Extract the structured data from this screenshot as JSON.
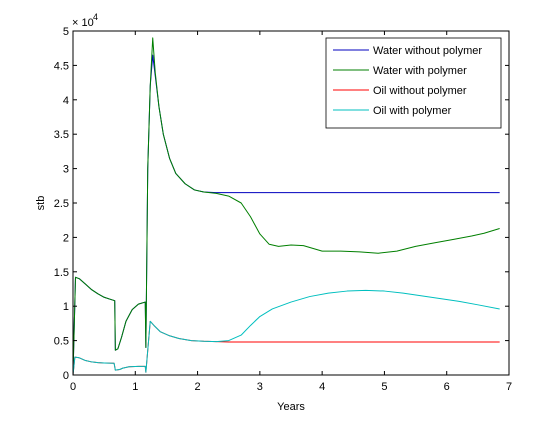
{
  "chart_data": {
    "type": "line",
    "title": "",
    "xlabel": "Years",
    "ylabel": "stb",
    "xlim": [
      0,
      7
    ],
    "ylim": [
      0,
      50000
    ],
    "x_ticks": [
      0,
      1,
      2,
      3,
      4,
      5,
      6,
      7
    ],
    "y_ticks": [
      0,
      5000,
      10000,
      15000,
      20000,
      25000,
      30000,
      35000,
      40000,
      45000,
      50000
    ],
    "y_tick_labels": [
      "0",
      "0.5",
      "1",
      "1.5",
      "2",
      "2.5",
      "3",
      "3.5",
      "4",
      "4.5",
      "5"
    ],
    "x_tick_labels": [
      "0",
      "1",
      "2",
      "3",
      "4",
      "5",
      "6",
      "7"
    ],
    "y_exponent_label": "× 10",
    "y_exponent_power": "4",
    "grid": false,
    "legend_position": "top-right",
    "series": [
      {
        "name": "Water without polymer",
        "color": "#0000bf",
        "points": [
          [
            0.0,
            0
          ],
          [
            0.04,
            14200
          ],
          [
            0.1,
            14000
          ],
          [
            0.2,
            13200
          ],
          [
            0.3,
            12400
          ],
          [
            0.4,
            11800
          ],
          [
            0.5,
            11300
          ],
          [
            0.6,
            11000
          ],
          [
            0.67,
            10800
          ],
          [
            0.68,
            3600
          ],
          [
            0.72,
            3800
          ],
          [
            0.78,
            5500
          ],
          [
            0.85,
            7800
          ],
          [
            0.95,
            9500
          ],
          [
            1.05,
            10300
          ],
          [
            1.16,
            10600
          ],
          [
            1.17,
            4000
          ],
          [
            1.2,
            30000
          ],
          [
            1.24,
            42000
          ],
          [
            1.28,
            46500
          ],
          [
            1.32,
            43500
          ],
          [
            1.38,
            39000
          ],
          [
            1.45,
            35000
          ],
          [
            1.55,
            31500
          ],
          [
            1.65,
            29300
          ],
          [
            1.8,
            27800
          ],
          [
            1.95,
            26900
          ],
          [
            2.1,
            26600
          ],
          [
            2.3,
            26500
          ],
          [
            2.5,
            26500
          ],
          [
            3.0,
            26500
          ],
          [
            4.0,
            26500
          ],
          [
            5.0,
            26500
          ],
          [
            6.0,
            26500
          ],
          [
            6.85,
            26500
          ]
        ]
      },
      {
        "name": "Water with polymer",
        "color": "#007f00",
        "points": [
          [
            0.0,
            0
          ],
          [
            0.04,
            14200
          ],
          [
            0.1,
            14000
          ],
          [
            0.2,
            13200
          ],
          [
            0.3,
            12400
          ],
          [
            0.4,
            11800
          ],
          [
            0.5,
            11300
          ],
          [
            0.6,
            11000
          ],
          [
            0.67,
            10800
          ],
          [
            0.68,
            3600
          ],
          [
            0.72,
            3800
          ],
          [
            0.78,
            5500
          ],
          [
            0.85,
            7800
          ],
          [
            0.95,
            9500
          ],
          [
            1.05,
            10300
          ],
          [
            1.16,
            10600
          ],
          [
            1.17,
            4000
          ],
          [
            1.2,
            30000
          ],
          [
            1.24,
            42000
          ],
          [
            1.28,
            49000
          ],
          [
            1.32,
            44000
          ],
          [
            1.38,
            39000
          ],
          [
            1.45,
            35000
          ],
          [
            1.55,
            31500
          ],
          [
            1.65,
            29300
          ],
          [
            1.8,
            27800
          ],
          [
            1.95,
            26900
          ],
          [
            2.1,
            26600
          ],
          [
            2.3,
            26400
          ],
          [
            2.5,
            26000
          ],
          [
            2.7,
            25000
          ],
          [
            2.85,
            23000
          ],
          [
            3.0,
            20500
          ],
          [
            3.15,
            19000
          ],
          [
            3.3,
            18700
          ],
          [
            3.5,
            18900
          ],
          [
            3.7,
            18800
          ],
          [
            3.85,
            18400
          ],
          [
            4.0,
            18000
          ],
          [
            4.3,
            18000
          ],
          [
            4.6,
            17900
          ],
          [
            4.9,
            17700
          ],
          [
            5.2,
            18000
          ],
          [
            5.5,
            18700
          ],
          [
            5.8,
            19200
          ],
          [
            6.1,
            19700
          ],
          [
            6.4,
            20200
          ],
          [
            6.6,
            20600
          ],
          [
            6.85,
            21300
          ]
        ]
      },
      {
        "name": "Oil without polymer",
        "color": "#ff0000",
        "points": [
          [
            0.0,
            0
          ],
          [
            0.03,
            2600
          ],
          [
            0.1,
            2500
          ],
          [
            0.2,
            2100
          ],
          [
            0.3,
            1900
          ],
          [
            0.4,
            1800
          ],
          [
            0.5,
            1750
          ],
          [
            0.66,
            1700
          ],
          [
            0.68,
            700
          ],
          [
            0.75,
            800
          ],
          [
            0.8,
            1000
          ],
          [
            0.9,
            1200
          ],
          [
            1.05,
            1250
          ],
          [
            1.16,
            1250
          ],
          [
            1.17,
            400
          ],
          [
            1.24,
            7800
          ],
          [
            1.3,
            7200
          ],
          [
            1.4,
            6300
          ],
          [
            1.55,
            5700
          ],
          [
            1.7,
            5300
          ],
          [
            1.9,
            5000
          ],
          [
            2.1,
            4900
          ],
          [
            2.3,
            4850
          ],
          [
            2.5,
            4800
          ],
          [
            3.0,
            4800
          ],
          [
            4.0,
            4800
          ],
          [
            5.0,
            4800
          ],
          [
            6.0,
            4800
          ],
          [
            6.85,
            4800
          ]
        ]
      },
      {
        "name": "Oil with polymer",
        "color": "#00bfbf",
        "points": [
          [
            0.0,
            0
          ],
          [
            0.03,
            2600
          ],
          [
            0.1,
            2500
          ],
          [
            0.2,
            2100
          ],
          [
            0.3,
            1900
          ],
          [
            0.4,
            1800
          ],
          [
            0.5,
            1750
          ],
          [
            0.66,
            1700
          ],
          [
            0.68,
            700
          ],
          [
            0.75,
            800
          ],
          [
            0.8,
            1000
          ],
          [
            0.9,
            1200
          ],
          [
            1.05,
            1250
          ],
          [
            1.16,
            1250
          ],
          [
            1.17,
            400
          ],
          [
            1.24,
            7800
          ],
          [
            1.3,
            7200
          ],
          [
            1.4,
            6300
          ],
          [
            1.55,
            5700
          ],
          [
            1.7,
            5300
          ],
          [
            1.9,
            5000
          ],
          [
            2.1,
            4900
          ],
          [
            2.3,
            4850
          ],
          [
            2.5,
            5000
          ],
          [
            2.7,
            5800
          ],
          [
            2.85,
            7200
          ],
          [
            3.0,
            8500
          ],
          [
            3.2,
            9600
          ],
          [
            3.5,
            10600
          ],
          [
            3.8,
            11400
          ],
          [
            4.1,
            11900
          ],
          [
            4.4,
            12200
          ],
          [
            4.7,
            12300
          ],
          [
            5.0,
            12200
          ],
          [
            5.3,
            11900
          ],
          [
            5.6,
            11500
          ],
          [
            5.9,
            11100
          ],
          [
            6.2,
            10700
          ],
          [
            6.5,
            10200
          ],
          [
            6.85,
            9600
          ]
        ]
      }
    ]
  }
}
